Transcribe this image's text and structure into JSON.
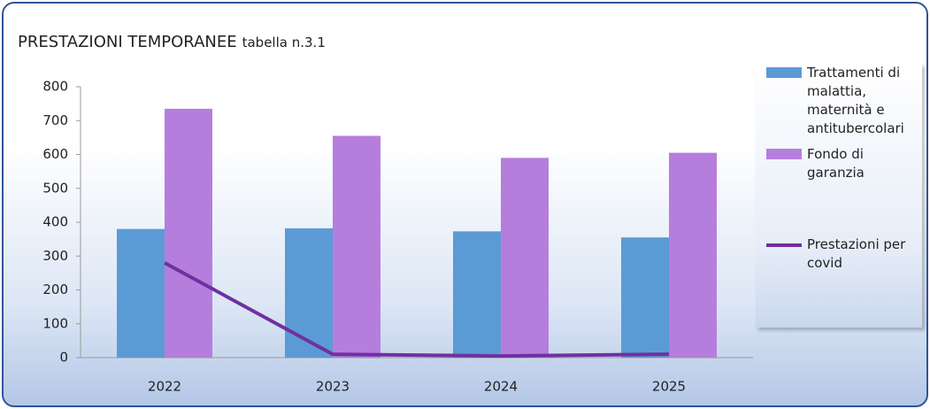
{
  "chart_data": {
    "type": "bar_line",
    "title": "PRESTAZIONI TEMPORANEE",
    "subtitle": "tabella n.3.1",
    "categories": [
      "2022",
      "2023",
      "2024",
      "2025"
    ],
    "series": [
      {
        "name": "Trattamenti di malattia, maternità e antitubercolari",
        "type": "bar",
        "color": "#5b9bd5",
        "values": [
          380,
          382,
          373,
          355
        ]
      },
      {
        "name": "Fondo di garanzia",
        "type": "bar",
        "color": "#b57edc",
        "values": [
          735,
          655,
          590,
          605
        ]
      },
      {
        "name": "Prestazioni per covid",
        "type": "line",
        "color": "#7030a0",
        "values": [
          280,
          10,
          5,
          10
        ]
      }
    ],
    "ylim": [
      0,
      800
    ],
    "yticks": [
      0,
      100,
      200,
      300,
      400,
      500,
      600,
      700,
      800
    ]
  }
}
